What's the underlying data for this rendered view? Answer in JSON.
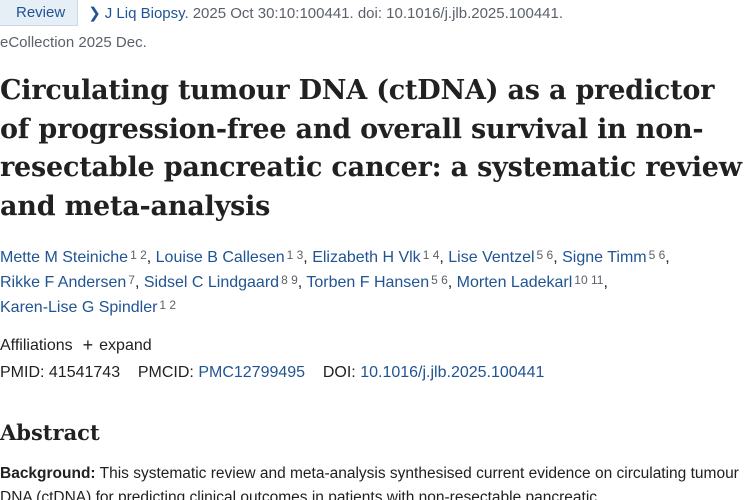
{
  "header": {
    "badge": "Review",
    "journal": "J Liq Biopsy.",
    "citation": "2025 Oct 30:10:100441. doi: 10.1016/j.jlb.2025.100441.",
    "ecollection": "eCollection 2025 Dec."
  },
  "article": {
    "title": "Circulating tumour DNA (ctDNA) as a predictor of progression-free and overall survival in non-resectable pancreatic cancer: a systematic review and meta-analysis"
  },
  "authors": [
    {
      "name": "Mette M Steiniche",
      "aff": "1 2"
    },
    {
      "name": "Louise B Callesen",
      "aff": "1 3"
    },
    {
      "name": "Elizabeth H Vlk",
      "aff": "1 4"
    },
    {
      "name": "Lise Ventzel",
      "aff": "5 6"
    },
    {
      "name": "Signe Timm",
      "aff": "5 6"
    },
    {
      "name": "Rikke F Andersen",
      "aff": "7"
    },
    {
      "name": "Sidsel C Lindgaard",
      "aff": "8 9"
    },
    {
      "name": "Torben F Hansen",
      "aff": "5 6"
    },
    {
      "name": "Morten Ladekarl",
      "aff": "10 11"
    },
    {
      "name": "Karen-Lise G Spindler",
      "aff": "1 2"
    }
  ],
  "affiliations": {
    "label": "Affiliations",
    "expand_icon": "+",
    "expand_label": "expand"
  },
  "identifiers": {
    "pmid_label": "PMID:",
    "pmid": "41541743",
    "pmcid_label": "PMCID:",
    "pmcid": "PMC12799495",
    "doi_label": "DOI:",
    "doi": "10.1016/j.jlb.2025.100441"
  },
  "abstract": {
    "heading": "Abstract",
    "background_label": "Background:",
    "background_text": "This systematic review and meta-analysis synthesised current evidence on circulating tumour DNA (ctDNA) for predicting clinical outcomes in patients with non-resectable pancreatic"
  },
  "colors": {
    "link": "#205493",
    "badge_bg": "#e6eef6",
    "muted": "#5b616b",
    "text": "#212121"
  }
}
